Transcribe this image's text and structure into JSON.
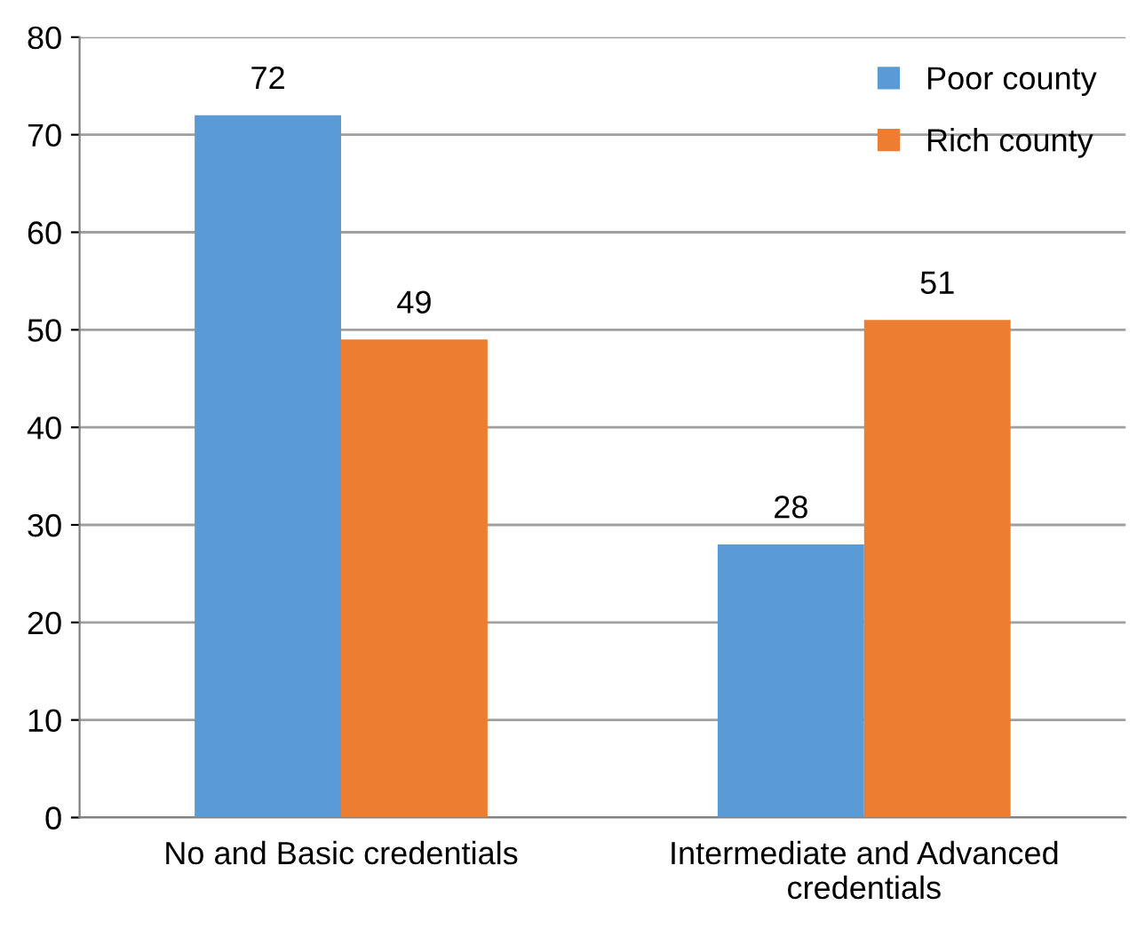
{
  "chart_data": {
    "type": "bar",
    "categories": [
      "No and Basic credentials",
      "Intermediate and Advanced credentials"
    ],
    "series": [
      {
        "name": "Poor county",
        "color": "#5b9bd5",
        "values": [
          72,
          28
        ]
      },
      {
        "name": "Rich county",
        "color": "#ed7d31",
        "values": [
          49,
          51
        ]
      }
    ],
    "ylim": [
      0,
      80
    ],
    "yticks": [
      0,
      10,
      20,
      30,
      40,
      50,
      60,
      70,
      80
    ],
    "grid": "y",
    "legend": "top right",
    "data_labels": true
  }
}
